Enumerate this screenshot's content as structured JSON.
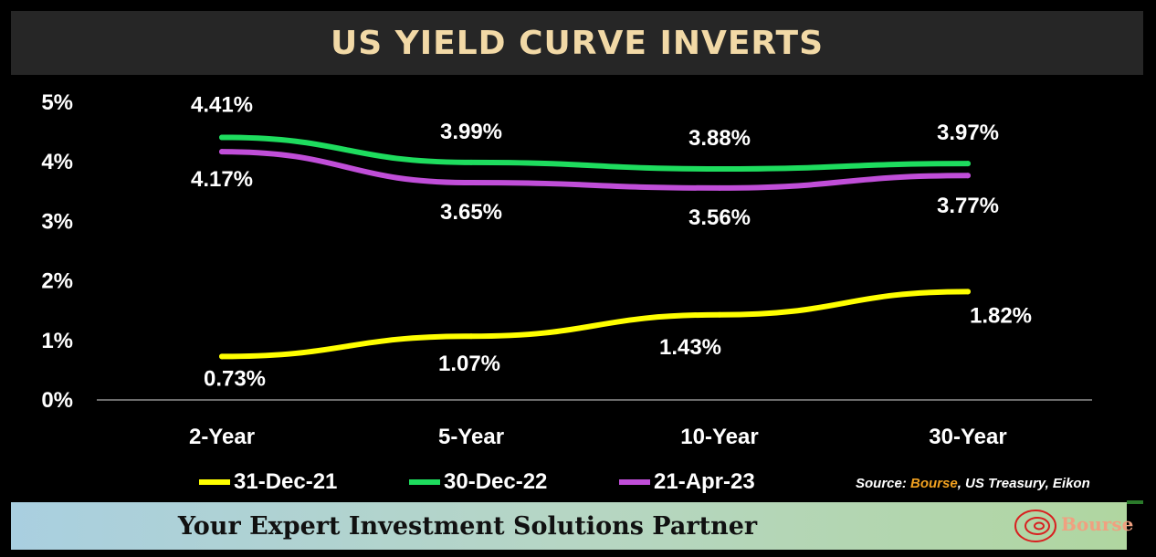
{
  "title": "US YIELD CURVE INVERTS",
  "chart_data": {
    "type": "line",
    "categories": [
      "2-Year",
      "5-Year",
      "10-Year",
      "30-Year"
    ],
    "series": [
      {
        "name": "31-Dec-21",
        "color": "#ffff00",
        "values": [
          0.73,
          1.07,
          1.43,
          1.82
        ],
        "labels": [
          "0.73%",
          "1.07%",
          "1.43%",
          "1.82%"
        ]
      },
      {
        "name": "30-Dec-22",
        "color": "#1edc5e",
        "values": [
          4.41,
          3.99,
          3.88,
          3.97
        ],
        "labels": [
          "4.41%",
          "3.99%",
          "3.88%",
          "3.97%"
        ]
      },
      {
        "name": "21-Apr-23",
        "color": "#c04ed8",
        "values": [
          4.17,
          3.65,
          3.56,
          3.77
        ],
        "labels": [
          "4.17%",
          "3.65%",
          "3.56%",
          "3.77%"
        ]
      }
    ],
    "ylim": [
      0,
      5
    ],
    "yticks": [
      "0%",
      "1%",
      "2%",
      "3%",
      "4%",
      "5%"
    ],
    "grid": false,
    "legend": "bottom"
  },
  "source": {
    "prefix": "Source: ",
    "brand": "Bourse",
    "rest": ", US Treasury, Eikon"
  },
  "footer": {
    "tagline": "Your Expert Investment Solutions Partner",
    "logo_text": "Bourse"
  }
}
